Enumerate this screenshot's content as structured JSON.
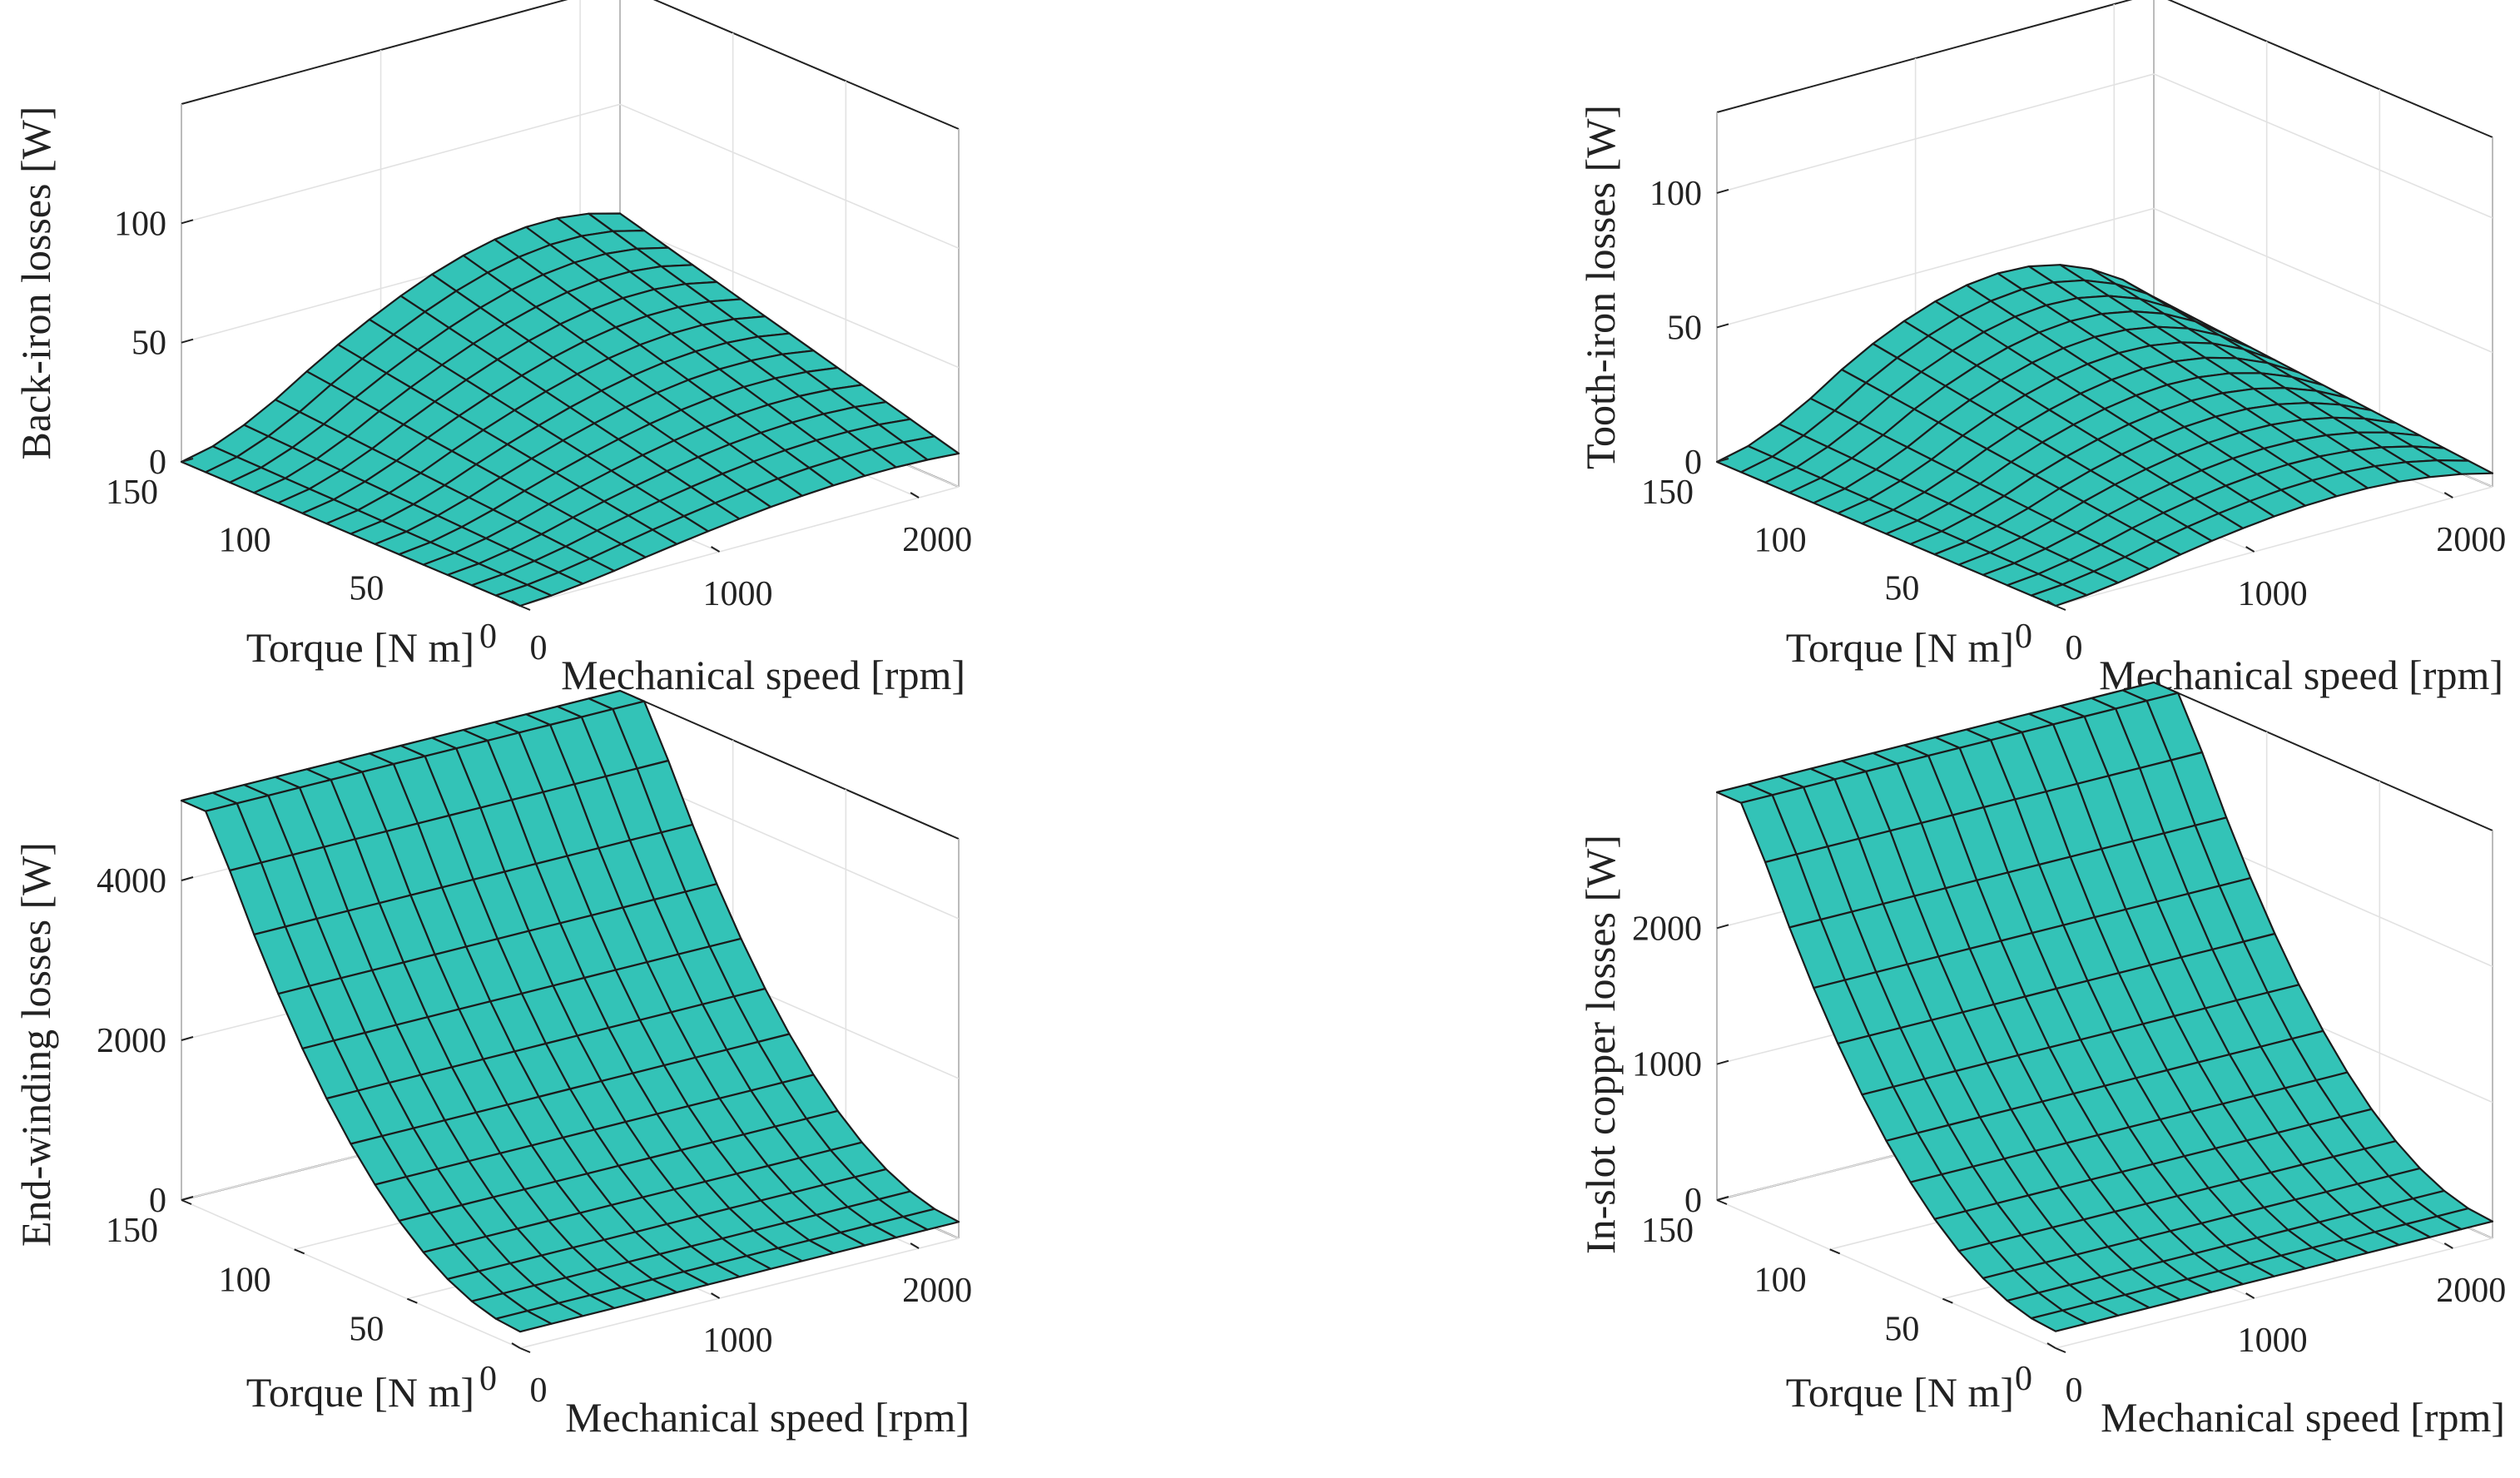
{
  "figure": {
    "panels": 4,
    "surface_color": "#33c3b7",
    "edge_color": "#1b1b1b"
  },
  "chart_data": [
    {
      "type": "surface",
      "title": "",
      "xlabel": "Mechanical speed [rpm]",
      "ylabel": "Torque [N m]",
      "zlabel": "Back-iron losses [W]",
      "xlim": [
        0,
        2200
      ],
      "ylim": [
        0,
        150
      ],
      "zlim": [
        0,
        150
      ],
      "xticks": [
        0,
        1000,
        2000
      ],
      "yticks": [
        0,
        50,
        100,
        150
      ],
      "zticks": [
        0,
        50,
        100
      ],
      "xticklabels": [
        "0",
        "1000",
        "2000"
      ],
      "yticklabels": [
        "0",
        "50",
        "100",
        "150"
      ],
      "zticklabels": [
        "0",
        "50",
        "100"
      ],
      "model": {
        "base_low_torque": 40,
        "base_high_torque": 155,
        "speed_exponent": 1.5,
        "droop_at_max_speed": 65,
        "droop_onset": 0.3
      }
    },
    {
      "type": "surface",
      "title": "",
      "xlabel": "Mechanical speed [rpm]",
      "ylabel": "Torque [N m]",
      "zlabel": "Tooth-iron losses [W]",
      "xlim": [
        0,
        2200
      ],
      "ylim": [
        0,
        150
      ],
      "zlim": [
        0,
        130
      ],
      "xticks": [
        0,
        1000,
        2000
      ],
      "yticks": [
        0,
        50,
        100,
        150
      ],
      "zticks": [
        0,
        50,
        100
      ],
      "xticklabels": [
        "0",
        "1000",
        "2000"
      ],
      "yticklabels": [
        "0",
        "50",
        "100",
        "150"
      ],
      "zticklabels": [
        "0",
        "50",
        "100"
      ],
      "model": {
        "base_low_torque": 42,
        "base_high_torque": 142,
        "speed_exponent": 1.5,
        "droop_at_max_speed": 88,
        "droop_onset": 0.3
      }
    },
    {
      "type": "surface",
      "title": "",
      "xlabel": "Mechanical speed [rpm]",
      "ylabel": "Torque [N m]",
      "zlabel": "End-winding losses [W]",
      "xlim": [
        0,
        2200
      ],
      "ylim": [
        0,
        150
      ],
      "zlim": [
        0,
        5000
      ],
      "xticks": [
        0,
        1000,
        2000
      ],
      "yticks": [
        0,
        50,
        100,
        150
      ],
      "zticks": [
        0,
        2000,
        4000
      ],
      "xticklabels": [
        "0",
        "1000",
        "2000"
      ],
      "yticklabels": [
        "0",
        "50",
        "100",
        "150"
      ],
      "zticklabels": [
        "0",
        "2000",
        "4000"
      ],
      "model": {
        "max_value": 5900,
        "torque_exponent": 2,
        "low_torque_offset": 0.035
      }
    },
    {
      "type": "surface",
      "title": "",
      "xlabel": "Mechanical speed [rpm]",
      "ylabel": "Torque [N m]",
      "zlabel": "In-slot copper losses [W]",
      "xlim": [
        0,
        2200
      ],
      "ylim": [
        0,
        150
      ],
      "zlim": [
        0,
        3000
      ],
      "xticks": [
        0,
        1000,
        2000
      ],
      "yticks": [
        0,
        50,
        100,
        150
      ],
      "zticks": [
        0,
        1000,
        2000
      ],
      "xticklabels": [
        "0",
        "1000",
        "2000"
      ],
      "yticklabels": [
        "0",
        "50",
        "100",
        "150"
      ],
      "zticklabels": [
        "0",
        "1000",
        "2000"
      ],
      "model": {
        "max_value": 3550,
        "torque_exponent": 2,
        "low_torque_offset": 0.035
      }
    }
  ]
}
